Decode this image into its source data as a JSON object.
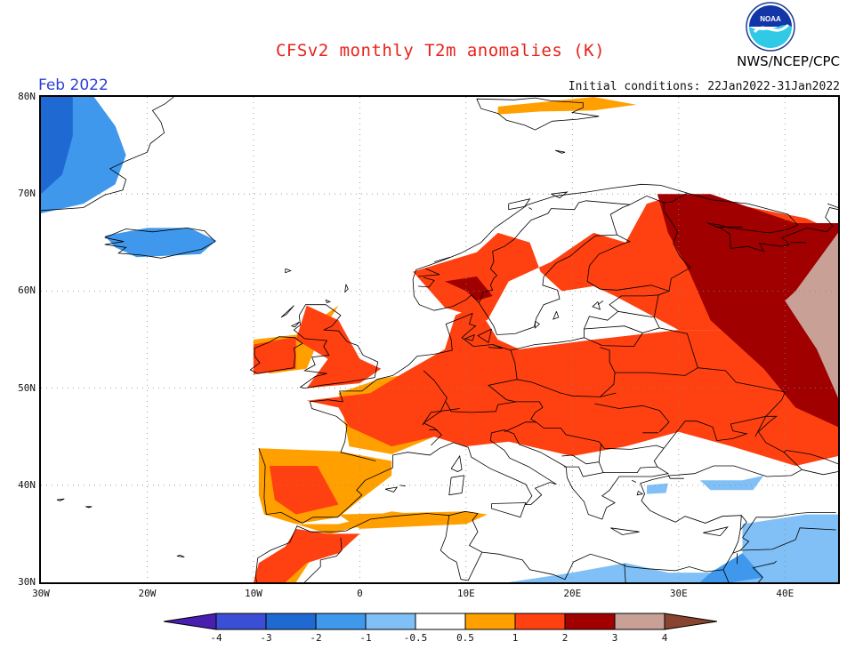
{
  "header": {
    "title": "CFSv2 monthly T2m anomalies (K)",
    "agency": "NWS/NCEP/CPC",
    "month": "Feb 2022",
    "initial_conditions": "Initial conditions: 22Jan2022-31Jan2022",
    "logo_text": "NOAA"
  },
  "map": {
    "lon_range": [
      -30,
      45
    ],
    "lat_range": [
      30,
      80
    ],
    "lat_labels": [
      "80N",
      "70N",
      "60N",
      "50N",
      "40N",
      "30N"
    ],
    "lon_labels": [
      "30W",
      "20W",
      "10W",
      "0",
      "10E",
      "20E",
      "30E",
      "40E"
    ],
    "grid": "dotted, 10 degree spacing"
  },
  "legend": {
    "labels": [
      "-4",
      "-3",
      "-2",
      "-1",
      "-0.5",
      "0.5",
      "1",
      "2",
      "3",
      "4"
    ],
    "colors": [
      "#4a1fb0",
      "#3a4fd6",
      "#1f6ad2",
      "#3f98ec",
      "#80c0f6",
      "#ffffff",
      "#ffa000",
      "#ff4010",
      "#a00000",
      "#c8a096",
      "#884430"
    ]
  },
  "colors": {
    "title": "#e8221a",
    "month": "#2b3fd8",
    "coast": "#000000"
  }
}
